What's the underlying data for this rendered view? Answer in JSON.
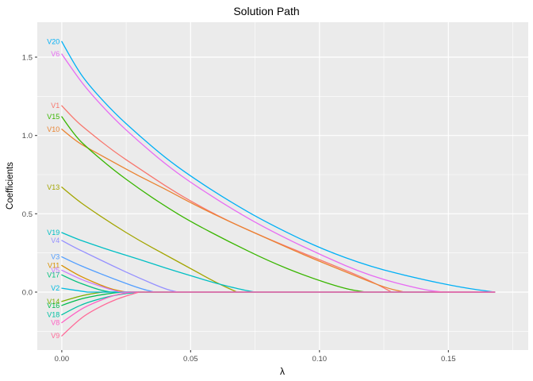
{
  "title": "Solution Path",
  "chart_data": {
    "type": "line",
    "title": "Solution Path",
    "xlabel": "λ",
    "ylabel": "Coefficients",
    "xlim": [
      -0.0095,
      0.181
    ],
    "ylim": [
      -0.37,
      1.723
    ],
    "grid": true,
    "panel_bg": "#EBEBEB",
    "grid_major_color": "#FFFFFF",
    "grid_minor_color": "#FFFFFF",
    "tick_color": "#333333",
    "tick_label_color": "#4D4D4D",
    "x_ticks": [
      0,
      0.05,
      0.1,
      0.15
    ],
    "x_tick_labels": [
      "0.00",
      "0.05",
      "0.10",
      "0.15"
    ],
    "x_minor": [
      0.025,
      0.075,
      0.125,
      0.175
    ],
    "y_ticks": [
      0,
      0.5,
      1,
      1.5
    ],
    "y_tick_labels": [
      "0.0",
      "0.5",
      "1.0",
      "1.5"
    ],
    "y_minor": [
      -0.25,
      0.25,
      0.75,
      1.25
    ],
    "lambda_end": 0.168,
    "series": [
      {
        "name": "V1",
        "color": "#F8766D",
        "points": [
          [
            0,
            1.19
          ],
          [
            0.005,
            1.1
          ],
          [
            0.01,
            1.03
          ],
          [
            0.02,
            0.9
          ],
          [
            0.03,
            0.79
          ],
          [
            0.04,
            0.68
          ],
          [
            0.05,
            0.58
          ],
          [
            0.065,
            0.45
          ],
          [
            0.08,
            0.34
          ],
          [
            0.095,
            0.24
          ],
          [
            0.11,
            0.14
          ],
          [
            0.12,
            0.07
          ],
          [
            0.128,
            0
          ]
        ]
      },
      {
        "name": "V10",
        "color": "#EA8331",
        "points": [
          [
            0,
            1.04
          ],
          [
            0.005,
            0.97
          ],
          [
            0.01,
            0.92
          ],
          [
            0.02,
            0.83
          ],
          [
            0.03,
            0.74
          ],
          [
            0.04,
            0.66
          ],
          [
            0.05,
            0.57
          ],
          [
            0.065,
            0.45
          ],
          [
            0.08,
            0.34
          ],
          [
            0.095,
            0.23
          ],
          [
            0.11,
            0.13
          ],
          [
            0.125,
            0.03
          ],
          [
            0.133,
            0
          ]
        ]
      },
      {
        "name": "V11",
        "color": "#D89000",
        "points": [
          [
            0,
            0.17
          ],
          [
            0.005,
            0.12
          ],
          [
            0.01,
            0.08
          ],
          [
            0.015,
            0.045
          ],
          [
            0.02,
            0.015
          ],
          [
            0.025,
            0
          ]
        ]
      },
      {
        "name": "V13",
        "color": "#A3A500",
        "points": [
          [
            0,
            0.67
          ],
          [
            0.005,
            0.6
          ],
          [
            0.01,
            0.54
          ],
          [
            0.02,
            0.43
          ],
          [
            0.03,
            0.33
          ],
          [
            0.04,
            0.24
          ],
          [
            0.05,
            0.15
          ],
          [
            0.06,
            0.06
          ],
          [
            0.068,
            0
          ]
        ]
      },
      {
        "name": "V14",
        "color": "#7CAE00",
        "points": [
          [
            0,
            -0.06
          ],
          [
            0.005,
            -0.035
          ],
          [
            0.01,
            -0.015
          ],
          [
            0.016,
            0
          ]
        ]
      },
      {
        "name": "V15",
        "color": "#39B600",
        "points": [
          [
            0,
            1.12
          ],
          [
            0.005,
            1.0
          ],
          [
            0.01,
            0.92
          ],
          [
            0.02,
            0.78
          ],
          [
            0.03,
            0.66
          ],
          [
            0.04,
            0.55
          ],
          [
            0.05,
            0.45
          ],
          [
            0.065,
            0.32
          ],
          [
            0.08,
            0.2
          ],
          [
            0.095,
            0.1
          ],
          [
            0.11,
            0.02
          ],
          [
            0.118,
            0
          ]
        ]
      },
      {
        "name": "V16",
        "color": "#00BB4E",
        "points": [
          [
            0,
            -0.085
          ],
          [
            0.005,
            -0.055
          ],
          [
            0.01,
            -0.032
          ],
          [
            0.02,
            -0.005
          ],
          [
            0.024,
            0
          ]
        ]
      },
      {
        "name": "V17",
        "color": "#00BF7D",
        "points": [
          [
            0,
            0.11
          ],
          [
            0.005,
            0.07
          ],
          [
            0.01,
            0.04
          ],
          [
            0.015,
            0.012
          ],
          [
            0.019,
            0
          ]
        ]
      },
      {
        "name": "V18",
        "color": "#00C1A3",
        "points": [
          [
            0,
            -0.145
          ],
          [
            0.005,
            -0.1
          ],
          [
            0.01,
            -0.065
          ],
          [
            0.02,
            -0.02
          ],
          [
            0.03,
            0
          ]
        ]
      },
      {
        "name": "V19",
        "color": "#00BFC4",
        "points": [
          [
            0,
            0.38
          ],
          [
            0.005,
            0.345
          ],
          [
            0.01,
            0.315
          ],
          [
            0.02,
            0.26
          ],
          [
            0.03,
            0.21
          ],
          [
            0.04,
            0.155
          ],
          [
            0.05,
            0.105
          ],
          [
            0.06,
            0.055
          ],
          [
            0.07,
            0.015
          ],
          [
            0.075,
            0
          ]
        ]
      },
      {
        "name": "V2",
        "color": "#00BAE0",
        "points": [
          [
            0,
            0.025
          ],
          [
            0.005,
            0.012
          ],
          [
            0.01,
            0
          ]
        ]
      },
      {
        "name": "V20",
        "color": "#00B0F6",
        "points": [
          [
            0,
            1.6
          ],
          [
            0.005,
            1.45
          ],
          [
            0.01,
            1.33
          ],
          [
            0.02,
            1.15
          ],
          [
            0.03,
            1.0
          ],
          [
            0.04,
            0.86
          ],
          [
            0.05,
            0.74
          ],
          [
            0.065,
            0.58
          ],
          [
            0.08,
            0.44
          ],
          [
            0.1,
            0.28
          ],
          [
            0.12,
            0.16
          ],
          [
            0.14,
            0.08
          ],
          [
            0.155,
            0.03
          ],
          [
            0.168,
            0
          ]
        ]
      },
      {
        "name": "V3",
        "color": "#529EFF",
        "points": [
          [
            0,
            0.225
          ],
          [
            0.005,
            0.185
          ],
          [
            0.01,
            0.15
          ],
          [
            0.02,
            0.085
          ],
          [
            0.03,
            0.025
          ],
          [
            0.036,
            0
          ]
        ]
      },
      {
        "name": "V4",
        "color": "#9590FF",
        "points": [
          [
            0,
            0.33
          ],
          [
            0.005,
            0.285
          ],
          [
            0.01,
            0.245
          ],
          [
            0.02,
            0.165
          ],
          [
            0.03,
            0.09
          ],
          [
            0.04,
            0.02
          ],
          [
            0.045,
            0
          ]
        ]
      },
      {
        "name": "V5",
        "color": "#C77CFF",
        "points": [
          [
            0,
            0.14
          ],
          [
            0.005,
            0.1
          ],
          [
            0.01,
            0.065
          ],
          [
            0.02,
            0.01
          ],
          [
            0.023,
            0
          ]
        ]
      },
      {
        "name": "V6",
        "color": "#E76BF3",
        "points": [
          [
            0,
            1.52
          ],
          [
            0.005,
            1.4
          ],
          [
            0.01,
            1.29
          ],
          [
            0.02,
            1.11
          ],
          [
            0.03,
            0.96
          ],
          [
            0.04,
            0.82
          ],
          [
            0.05,
            0.7
          ],
          [
            0.065,
            0.54
          ],
          [
            0.08,
            0.4
          ],
          [
            0.1,
            0.24
          ],
          [
            0.12,
            0.1
          ],
          [
            0.14,
            0.015
          ],
          [
            0.148,
            0
          ]
        ]
      },
      {
        "name": "V8",
        "color": "#FF61C3",
        "points": [
          [
            0,
            -0.195
          ],
          [
            0.005,
            -0.135
          ],
          [
            0.01,
            -0.085
          ],
          [
            0.02,
            -0.02
          ],
          [
            0.027,
            0
          ]
        ]
      },
      {
        "name": "V9",
        "color": "#FF6A98",
        "points": [
          [
            0,
            -0.28
          ],
          [
            0.005,
            -0.2
          ],
          [
            0.01,
            -0.135
          ],
          [
            0.02,
            -0.05
          ],
          [
            0.03,
            0
          ]
        ]
      }
    ]
  }
}
